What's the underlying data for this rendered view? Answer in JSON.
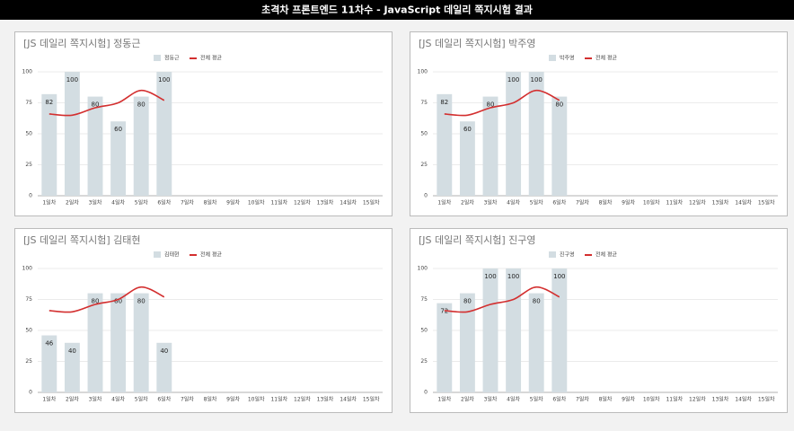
{
  "header": {
    "title": "초격차 프론트엔드 11차수 - JavaScript 데일리 쪽지시험 결과"
  },
  "chart_data": [
    {
      "type": "bar",
      "title": "[JS 데일리 쪽지시험] 정동근",
      "categories": [
        "1일차",
        "2일차",
        "3일차",
        "4일차",
        "5일차",
        "6일차",
        "7일차",
        "8일차",
        "9일차",
        "10일차",
        "11일차",
        "12일차",
        "13일차",
        "14일차",
        "15일차"
      ],
      "series": [
        {
          "name": "정동근",
          "type": "bar",
          "color": "#d3dde2",
          "values": [
            82,
            100,
            80,
            60,
            80,
            100,
            null,
            null,
            null,
            null,
            null,
            null,
            null,
            null,
            null
          ]
        },
        {
          "name": "전체 평균",
          "type": "line",
          "color": "#d32f2f",
          "values": [
            66,
            65,
            71,
            75,
            85,
            77,
            null,
            null,
            null,
            null,
            null,
            null,
            null,
            null,
            null
          ]
        }
      ],
      "ylim": [
        0,
        100
      ],
      "yticks": [
        0,
        25,
        50,
        75,
        100
      ],
      "grid": true,
      "legend": "top"
    },
    {
      "type": "bar",
      "title": "[JS 데일리 쪽지시험] 박주영",
      "categories": [
        "1일차",
        "2일차",
        "3일차",
        "4일차",
        "5일차",
        "6일차",
        "7일차",
        "8일차",
        "9일차",
        "10일차",
        "11일차",
        "12일차",
        "13일차",
        "14일차",
        "15일차"
      ],
      "series": [
        {
          "name": "박주영",
          "type": "bar",
          "color": "#d3dde2",
          "values": [
            82,
            60,
            80,
            100,
            100,
            80,
            null,
            null,
            null,
            null,
            null,
            null,
            null,
            null,
            null
          ]
        },
        {
          "name": "전체 평균",
          "type": "line",
          "color": "#d32f2f",
          "values": [
            66,
            65,
            71,
            75,
            85,
            77,
            null,
            null,
            null,
            null,
            null,
            null,
            null,
            null,
            null
          ]
        }
      ],
      "ylim": [
        0,
        100
      ],
      "yticks": [
        0,
        25,
        50,
        75,
        100
      ],
      "grid": true,
      "legend": "top"
    },
    {
      "type": "bar",
      "title": "[JS 데일리 쪽지시험] 김태현",
      "categories": [
        "1일차",
        "2일차",
        "3일차",
        "4일차",
        "5일차",
        "6일차",
        "7일차",
        "8일차",
        "9일차",
        "10일차",
        "11일차",
        "12일차",
        "13일차",
        "14일차",
        "15일차"
      ],
      "series": [
        {
          "name": "김태현",
          "type": "bar",
          "color": "#d3dde2",
          "values": [
            46,
            40,
            80,
            80,
            80,
            40,
            null,
            null,
            null,
            null,
            null,
            null,
            null,
            null,
            null
          ]
        },
        {
          "name": "전체 평균",
          "type": "line",
          "color": "#d32f2f",
          "values": [
            66,
            65,
            71,
            75,
            85,
            77,
            null,
            null,
            null,
            null,
            null,
            null,
            null,
            null,
            null
          ]
        }
      ],
      "ylim": [
        0,
        100
      ],
      "yticks": [
        0,
        25,
        50,
        75,
        100
      ],
      "grid": true,
      "legend": "top"
    },
    {
      "type": "bar",
      "title": "[JS 데일리 쪽지시험] 진구영",
      "categories": [
        "1일차",
        "2일차",
        "3일차",
        "4일차",
        "5일차",
        "6일차",
        "7일차",
        "8일차",
        "9일차",
        "10일차",
        "11일차",
        "12일차",
        "13일차",
        "14일차",
        "15일차"
      ],
      "series": [
        {
          "name": "진구영",
          "type": "bar",
          "color": "#d3dde2",
          "values": [
            72,
            80,
            100,
            100,
            80,
            100,
            null,
            null,
            null,
            null,
            null,
            null,
            null,
            null,
            null
          ]
        },
        {
          "name": "전체 평균",
          "type": "line",
          "color": "#d32f2f",
          "values": [
            66,
            65,
            71,
            75,
            85,
            77,
            null,
            null,
            null,
            null,
            null,
            null,
            null,
            null,
            null
          ]
        }
      ],
      "ylim": [
        0,
        100
      ],
      "yticks": [
        0,
        25,
        50,
        75,
        100
      ],
      "grid": true,
      "legend": "top"
    }
  ]
}
